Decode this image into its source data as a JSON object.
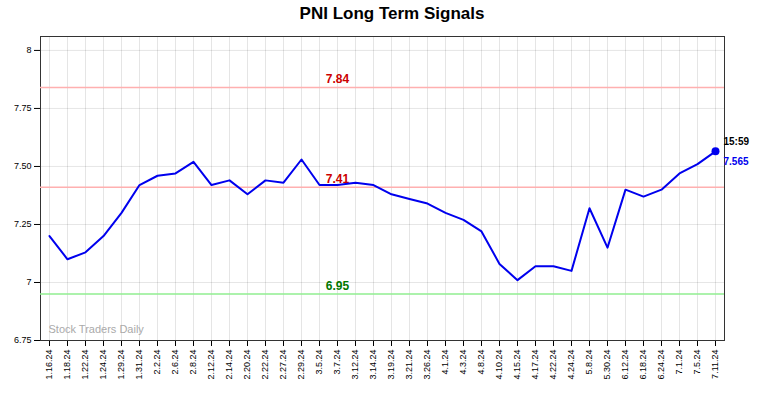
{
  "chart_data": {
    "type": "line",
    "title": "PNI Long Term Signals",
    "categories": [
      "1.16.24",
      "1.18.24",
      "1.22.24",
      "1.24.24",
      "1.29.24",
      "1.31.24",
      "2.2.24",
      "2.6.24",
      "2.8.24",
      "2.12.24",
      "2.14.24",
      "2.20.24",
      "2.22.24",
      "2.27.24",
      "2.29.24",
      "3.5.24",
      "3.7.24",
      "3.12.24",
      "3.14.24",
      "3.19.24",
      "3.21.24",
      "3.26.24",
      "4.1.24",
      "4.3.24",
      "4.8.24",
      "4.10.24",
      "4.15.24",
      "4.17.24",
      "4.22.24",
      "4.24.24",
      "5.8.24",
      "5.30.24",
      "6.12.24",
      "6.18.24",
      "6.24.24",
      "7.1.24",
      "7.5.24",
      "7.11.24"
    ],
    "values": [
      7.2,
      7.1,
      7.13,
      7.2,
      7.3,
      7.42,
      7.46,
      7.47,
      7.52,
      7.42,
      7.44,
      7.38,
      7.44,
      7.43,
      7.53,
      7.42,
      7.42,
      7.43,
      7.42,
      7.38,
      7.36,
      7.34,
      7.3,
      7.27,
      7.22,
      7.08,
      7.01,
      7.07,
      7.07,
      7.05,
      7.32,
      7.15,
      7.4,
      7.37,
      7.4,
      7.47,
      7.51,
      7.565
    ],
    "color": "#0000ee",
    "ylim": [
      6.75,
      8.06
    ],
    "yticks": [
      6.75,
      7,
      7.25,
      {
        "value": 7.5,
        "label": "7.50"
      },
      7.75,
      8
    ],
    "grid": true,
    "reference_lines": [
      {
        "value": 7.84,
        "label": "7.84",
        "color": "#ffb0b0",
        "label_color": "#cc0000"
      },
      {
        "value": 7.41,
        "label": "7.41",
        "color": "#ffb0b0",
        "label_color": "#cc0000"
      },
      {
        "value": 6.95,
        "label": "6.95",
        "color": "#90ee90",
        "label_color": "#007700"
      }
    ],
    "annotations": [
      {
        "text": "15:59",
        "color": "#000000"
      },
      {
        "text": "7.565",
        "color": "#0000ee"
      }
    ],
    "watermark": "Stock Traders Daily"
  }
}
